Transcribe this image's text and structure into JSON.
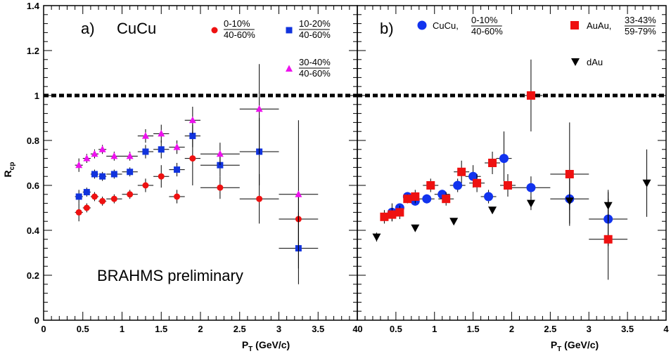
{
  "chart_data": [
    {
      "type": "scatter",
      "panel_label": "a)",
      "system_label": "CuCu",
      "annotation": "BRAHMS preliminary",
      "xlabel_main": "P",
      "xlabel_sub": "T",
      "xlabel_rest": " (GeV/c)",
      "ylabel_main": "R",
      "ylabel_sub": "cp",
      "xlim": [
        0,
        4
      ],
      "ylim": [
        0,
        1.4
      ],
      "xticks": [
        "0",
        "0.5",
        "1",
        "1.5",
        "2",
        "2.5",
        "3",
        "3.5",
        "4"
      ],
      "yticks": [
        "0",
        "0.2",
        "0.4",
        "0.6",
        "0.8",
        "1",
        "1.2",
        "1.4"
      ],
      "reference_line": 1,
      "series": [
        {
          "num": "0-10%",
          "den": "40-60%",
          "marker": "circle",
          "color": "#ee1111",
          "x": [
            0.45,
            0.55,
            0.65,
            0.75,
            0.9,
            1.1,
            1.3,
            1.5,
            1.7,
            1.9,
            2.25,
            2.75,
            3.25
          ],
          "y": [
            0.48,
            0.5,
            0.55,
            0.53,
            0.54,
            0.56,
            0.6,
            0.64,
            0.55,
            0.72,
            0.59,
            0.54,
            0.45
          ],
          "xerr": [
            0.05,
            0.05,
            0.05,
            0.05,
            0.1,
            0.1,
            0.1,
            0.1,
            0.1,
            0.1,
            0.25,
            0.25,
            0.25
          ],
          "yerr": [
            0.04,
            0.02,
            0.02,
            0.02,
            0.02,
            0.02,
            0.03,
            0.05,
            0.03,
            0.12,
            0.05,
            0.11,
            0.12
          ]
        },
        {
          "num": "10-20%",
          "den": "40-60%",
          "marker": "square",
          "color": "#1133dd",
          "x": [
            0.45,
            0.55,
            0.65,
            0.75,
            0.9,
            1.1,
            1.3,
            1.5,
            1.7,
            1.9,
            2.25,
            2.75,
            3.25
          ],
          "y": [
            0.55,
            0.57,
            0.65,
            0.64,
            0.65,
            0.66,
            0.75,
            0.76,
            0.67,
            0.82,
            0.69,
            0.75,
            0.32
          ],
          "xerr": [
            0.05,
            0.05,
            0.05,
            0.05,
            0.1,
            0.1,
            0.1,
            0.1,
            0.1,
            0.1,
            0.25,
            0.25,
            0.25
          ],
          "yerr": [
            0.03,
            0.02,
            0.02,
            0.02,
            0.02,
            0.02,
            0.03,
            0.04,
            0.03,
            0.05,
            0.05,
            0.15,
            0.16
          ]
        },
        {
          "num": "30-40%",
          "den": "40-60%",
          "marker": "triangle-up",
          "color": "#ee11ee",
          "x": [
            0.45,
            0.55,
            0.65,
            0.75,
            0.9,
            1.1,
            1.3,
            1.5,
            1.7,
            1.9,
            2.25,
            2.75,
            3.25
          ],
          "y": [
            0.69,
            0.72,
            0.74,
            0.76,
            0.73,
            0.73,
            0.82,
            0.83,
            0.77,
            0.89,
            0.74,
            0.94,
            0.56
          ],
          "xerr": [
            0.05,
            0.05,
            0.05,
            0.05,
            0.1,
            0.1,
            0.1,
            0.1,
            0.1,
            0.1,
            0.25,
            0.25,
            0.25
          ],
          "yerr": [
            0.03,
            0.02,
            0.02,
            0.02,
            0.02,
            0.02,
            0.03,
            0.04,
            0.03,
            0.06,
            0.05,
            0.2,
            0.33
          ]
        }
      ]
    },
    {
      "type": "scatter",
      "panel_label": "b)",
      "xlabel_main": "P",
      "xlabel_sub": "T",
      "xlabel_rest": " (GeV/c)",
      "xlim": [
        0,
        4
      ],
      "ylim": [
        0,
        1.4
      ],
      "xticks": [
        "0",
        "0.5",
        "1",
        "1.5",
        "2",
        "2.5",
        "3",
        "3.5",
        "4"
      ],
      "reference_line": 1,
      "series": [
        {
          "name": "CuCu,",
          "num": "0-10%",
          "den": "40-60%",
          "marker": "circle",
          "color": "#1133ee",
          "x": [
            0.45,
            0.55,
            0.65,
            0.75,
            0.9,
            1.1,
            1.3,
            1.5,
            1.7,
            1.9,
            2.25,
            2.75,
            3.25
          ],
          "y": [
            0.48,
            0.5,
            0.55,
            0.53,
            0.54,
            0.56,
            0.6,
            0.64,
            0.55,
            0.72,
            0.59,
            0.54,
            0.45
          ],
          "xerr": [
            0.05,
            0.05,
            0.05,
            0.05,
            0.1,
            0.1,
            0.1,
            0.1,
            0.1,
            0.1,
            0.25,
            0.25,
            0.25
          ],
          "yerr": [
            0.04,
            0.02,
            0.02,
            0.02,
            0.02,
            0.02,
            0.03,
            0.05,
            0.03,
            0.12,
            0.05,
            0.11,
            0.12
          ]
        },
        {
          "name": "AuAu,",
          "num": "33-43%",
          "den": "59-79%",
          "marker": "square",
          "color": "#ee1111",
          "x": [
            0.35,
            0.45,
            0.55,
            0.65,
            0.75,
            0.95,
            1.15,
            1.35,
            1.55,
            1.75,
            1.95,
            2.25,
            2.75,
            3.25
          ],
          "y": [
            0.46,
            0.47,
            0.48,
            0.54,
            0.55,
            0.6,
            0.54,
            0.66,
            0.61,
            0.7,
            0.6,
            1.0,
            0.65,
            0.36
          ],
          "xerr": [
            0.05,
            0.05,
            0.05,
            0.05,
            0.05,
            0.1,
            0.1,
            0.1,
            0.1,
            0.1,
            0.1,
            0.15,
            0.25,
            0.25
          ],
          "yerr": [
            0.03,
            0.03,
            0.03,
            0.02,
            0.03,
            0.03,
            0.03,
            0.05,
            0.04,
            0.05,
            0.05,
            0.16,
            0.23,
            0.18
          ]
        },
        {
          "name": "dAu",
          "marker": "triangle-down",
          "color": "#000000",
          "x": [
            0.25,
            0.75,
            1.25,
            1.75,
            2.25,
            2.75,
            3.25,
            3.75
          ],
          "y": [
            0.37,
            0.41,
            0.44,
            0.49,
            0.52,
            0.53,
            0.51,
            0.61
          ],
          "xerr": [
            0,
            0,
            0,
            0,
            0,
            0,
            0,
            0
          ],
          "yerr": [
            0.02,
            0,
            0,
            0,
            0.03,
            0.04,
            0.07,
            0.15
          ]
        }
      ]
    }
  ]
}
